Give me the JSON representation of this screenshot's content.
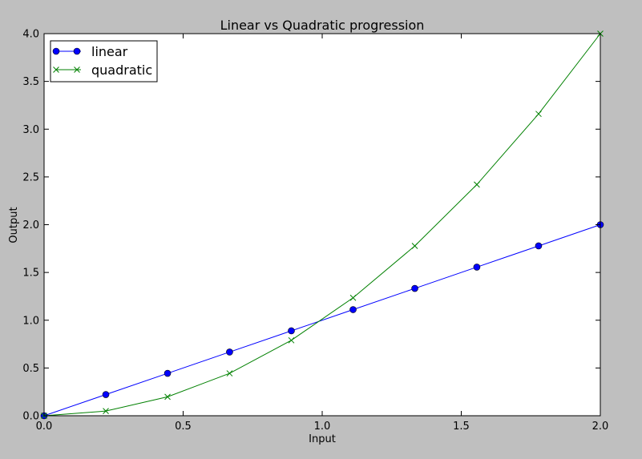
{
  "chart_data": {
    "type": "line",
    "title": "Linear vs Quadratic progression",
    "xlabel": "Input",
    "ylabel": "Output",
    "xlim": [
      0,
      2
    ],
    "ylim": [
      0,
      4
    ],
    "xticks": [
      "0.0",
      "0.5",
      "1.0",
      "1.5",
      "2.0"
    ],
    "yticks": [
      "0.0",
      "0.5",
      "1.0",
      "1.5",
      "2.0",
      "2.5",
      "3.0",
      "3.5",
      "4.0"
    ],
    "grid": false,
    "legend_position": "top-left",
    "x": [
      0.0,
      0.222,
      0.444,
      0.667,
      0.889,
      1.111,
      1.333,
      1.556,
      1.778,
      2.0
    ],
    "series": [
      {
        "name": "linear",
        "color": "#0000ff",
        "marker": "circle",
        "values": [
          0.0,
          0.222,
          0.444,
          0.667,
          0.889,
          1.111,
          1.333,
          1.556,
          1.778,
          2.0
        ]
      },
      {
        "name": "quadratic",
        "color": "#008000",
        "marker": "x",
        "values": [
          0.0,
          0.049,
          0.198,
          0.444,
          0.79,
          1.235,
          1.778,
          2.42,
          3.16,
          4.0
        ]
      }
    ]
  }
}
